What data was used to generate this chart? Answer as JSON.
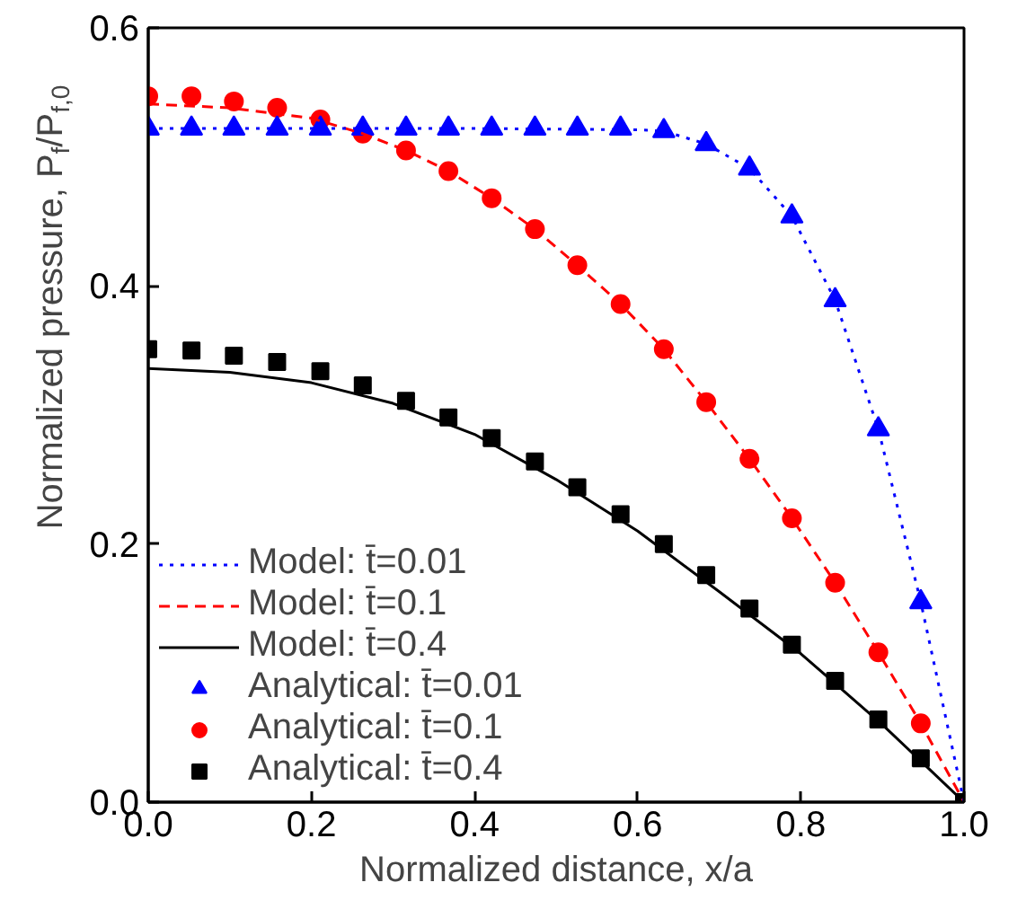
{
  "chart_data": {
    "type": "line",
    "xlabel": "Normalized distance, x/a",
    "ylabel": "Normalized pressure, P$_{f}$/P$_{f,0}$",
    "xlim": [
      0,
      1.0
    ],
    "ylim": [
      0,
      0.6
    ],
    "xticks": [
      {
        "value": 0,
        "label": "0.0"
      },
      0.2,
      0.4,
      0.6,
      0.8,
      {
        "value": 1,
        "label": "1.0"
      }
    ],
    "yticks": [
      {
        "value": 0,
        "label": "0.0"
      },
      0.2,
      0.4,
      0.6
    ],
    "legend": "bottom left",
    "grid": false,
    "series": [
      {
        "name": "Model: t̄=0.01",
        "color": "#0000ff",
        "line_style": "dotted",
        "marker": "none",
        "x": [
          0,
          0.2,
          0.4,
          0.6,
          0.632,
          0.684,
          0.737,
          0.789,
          0.842,
          0.895,
          0.947,
          1.0
        ],
        "values": [
          0.522,
          0.522,
          0.522,
          0.521,
          0.52,
          0.51,
          0.491,
          0.454,
          0.389,
          0.289,
          0.155,
          0
        ]
      },
      {
        "name": "Model: t̄=0.1",
        "color": "#ff0000",
        "line_style": "dashed",
        "marker": "none",
        "x": [
          0,
          0.1,
          0.2,
          0.263,
          0.316,
          0.368,
          0.421,
          0.474,
          0.526,
          0.579,
          0.632,
          0.684,
          0.737,
          0.789,
          0.842,
          0.895,
          0.947,
          1.0
        ],
        "values": [
          0.541,
          0.538,
          0.53,
          0.518,
          0.505,
          0.489,
          0.468,
          0.444,
          0.416,
          0.386,
          0.351,
          0.31,
          0.266,
          0.22,
          0.17,
          0.116,
          0.061,
          0
        ]
      },
      {
        "name": "Model: t̄=0.4",
        "color": "#000000",
        "line_style": "solid",
        "marker": "none",
        "x": [
          0,
          0.1,
          0.2,
          0.3,
          0.4,
          0.5,
          0.6,
          0.7,
          0.8,
          0.9,
          1.0
        ],
        "values": [
          0.336,
          0.333,
          0.325,
          0.309,
          0.285,
          0.25,
          0.21,
          0.163,
          0.115,
          0.06,
          0
        ]
      },
      {
        "name": "Analytical: t̄=0.01",
        "type": "scatter",
        "color": "#0000ff",
        "marker": "triangle",
        "x": [
          0,
          0.053,
          0.105,
          0.158,
          0.211,
          0.263,
          0.316,
          0.368,
          0.421,
          0.474,
          0.526,
          0.579,
          0.632,
          0.684,
          0.737,
          0.789,
          0.842,
          0.895,
          0.947
        ],
        "values": [
          0.522,
          0.522,
          0.522,
          0.522,
          0.522,
          0.522,
          0.522,
          0.522,
          0.522,
          0.522,
          0.522,
          0.522,
          0.52,
          0.51,
          0.491,
          0.454,
          0.389,
          0.289,
          0.155
        ]
      },
      {
        "name": "Analytical: t̄=0.1",
        "type": "scatter",
        "color": "#ff0000",
        "marker": "circle",
        "x": [
          0,
          0.053,
          0.105,
          0.158,
          0.211,
          0.263,
          0.316,
          0.368,
          0.421,
          0.474,
          0.526,
          0.579,
          0.632,
          0.684,
          0.737,
          0.789,
          0.842,
          0.895,
          0.947
        ],
        "values": [
          0.547,
          0.547,
          0.543,
          0.538,
          0.529,
          0.518,
          0.505,
          0.489,
          0.468,
          0.444,
          0.416,
          0.386,
          0.351,
          0.31,
          0.266,
          0.22,
          0.17,
          0.116,
          0.061
        ]
      },
      {
        "name": "Analytical: t̄=0.4",
        "type": "scatter",
        "color": "#000000",
        "marker": "square",
        "x": [
          0,
          0.053,
          0.105,
          0.158,
          0.211,
          0.263,
          0.316,
          0.368,
          0.421,
          0.474,
          0.526,
          0.579,
          0.632,
          0.684,
          0.737,
          0.789,
          0.842,
          0.895,
          0.947,
          1.0
        ],
        "values": [
          0.351,
          0.35,
          0.346,
          0.341,
          0.334,
          0.323,
          0.311,
          0.298,
          0.282,
          0.264,
          0.244,
          0.223,
          0.2,
          0.176,
          0.15,
          0.122,
          0.094,
          0.064,
          0.034,
          0
        ]
      }
    ]
  }
}
